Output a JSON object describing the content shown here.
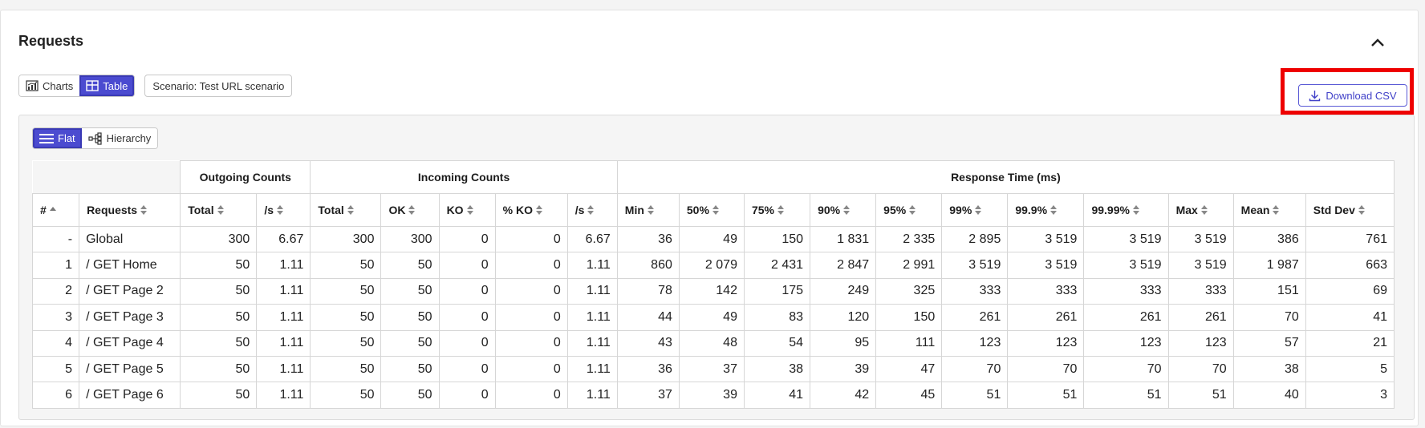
{
  "section": {
    "title": "Requests"
  },
  "view_toggle": {
    "charts_label": "Charts",
    "table_label": "Table",
    "active": "Table"
  },
  "scenario": {
    "label": "Scenario: Test URL scenario"
  },
  "download": {
    "label": "Download CSV"
  },
  "mode_toggle": {
    "flat_label": "Flat",
    "hierarchy_label": "Hierarchy",
    "active": "Flat"
  },
  "table": {
    "groups": {
      "outgoing": "Outgoing Counts",
      "incoming": "Incoming Counts",
      "response": "Response Time (ms)"
    },
    "columns": [
      "#",
      "Requests",
      "Total",
      "/s",
      "Total",
      "OK",
      "KO",
      "% KO",
      "/s",
      "Min",
      "50%",
      "75%",
      "90%",
      "95%",
      "99%",
      "99.9%",
      "99.99%",
      "Max",
      "Mean",
      "Std Dev"
    ],
    "rows": [
      [
        "-",
        "Global",
        "300",
        "6.67",
        "300",
        "300",
        "0",
        "0",
        "6.67",
        "36",
        "49",
        "150",
        "1 831",
        "2 335",
        "2 895",
        "3 519",
        "3 519",
        "3 519",
        "386",
        "761"
      ],
      [
        "1",
        "/ GET Home",
        "50",
        "1.11",
        "50",
        "50",
        "0",
        "0",
        "1.11",
        "860",
        "2 079",
        "2 431",
        "2 847",
        "2 991",
        "3 519",
        "3 519",
        "3 519",
        "3 519",
        "1 987",
        "663"
      ],
      [
        "2",
        "/ GET Page 2",
        "50",
        "1.11",
        "50",
        "50",
        "0",
        "0",
        "1.11",
        "78",
        "142",
        "175",
        "249",
        "325",
        "333",
        "333",
        "333",
        "333",
        "151",
        "69"
      ],
      [
        "3",
        "/ GET Page 3",
        "50",
        "1.11",
        "50",
        "50",
        "0",
        "0",
        "1.11",
        "44",
        "49",
        "83",
        "120",
        "150",
        "261",
        "261",
        "261",
        "261",
        "70",
        "41"
      ],
      [
        "4",
        "/ GET Page 4",
        "50",
        "1.11",
        "50",
        "50",
        "0",
        "0",
        "1.11",
        "43",
        "48",
        "54",
        "95",
        "111",
        "123",
        "123",
        "123",
        "123",
        "57",
        "21"
      ],
      [
        "5",
        "/ GET Page 5",
        "50",
        "1.11",
        "50",
        "50",
        "0",
        "0",
        "1.11",
        "36",
        "37",
        "38",
        "39",
        "47",
        "70",
        "70",
        "70",
        "70",
        "38",
        "5"
      ],
      [
        "6",
        "/ GET Page 6",
        "50",
        "1.11",
        "50",
        "50",
        "0",
        "0",
        "1.11",
        "37",
        "39",
        "41",
        "42",
        "45",
        "51",
        "51",
        "51",
        "51",
        "40",
        "3"
      ]
    ]
  },
  "colors": {
    "accent": "#4b4bd0",
    "highlight": "#ee0000"
  }
}
